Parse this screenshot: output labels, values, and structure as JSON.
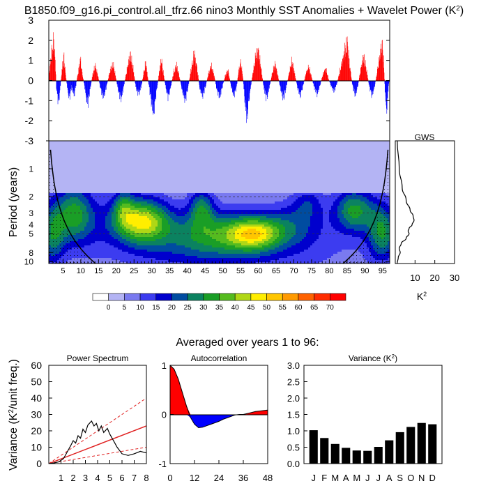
{
  "title_main": "B1850.f09_g16.pi_control.all_tfrz.66 nino3 Monthly SST Anomalies + Wavelet Power (K",
  "title_sup": "2",
  "title_close": ")",
  "colors": {
    "positive": "#ff0000",
    "negative": "#0000ff",
    "bar": "#000000",
    "red_line": "#e02020"
  },
  "chart_data": [
    {
      "type": "bar",
      "name": "timeseries",
      "ylim": [
        -3,
        3
      ],
      "yticks": [
        "3",
        "2",
        "1",
        "0",
        "-1",
        "-2",
        "-3"
      ],
      "ytick_values": [
        3,
        2,
        1,
        0,
        -1,
        -2,
        -3
      ],
      "xlim": [
        0,
        97
      ],
      "envelope": [
        [
          0.0,
          0.3
        ],
        [
          0.5,
          1.2
        ],
        [
          1.0,
          2.2
        ],
        [
          1.4,
          2.6
        ],
        [
          1.8,
          1.4
        ],
        [
          2.2,
          -0.6
        ],
        [
          2.8,
          -1.5
        ],
        [
          3.2,
          -0.6
        ],
        [
          3.8,
          0.8
        ],
        [
          4.3,
          1.6
        ],
        [
          4.8,
          0.4
        ],
        [
          5.3,
          -0.5
        ],
        [
          5.8,
          -1.2
        ],
        [
          6.5,
          -0.4
        ],
        [
          7.2,
          -1.0
        ],
        [
          7.8,
          -0.2
        ],
        [
          8.5,
          0.7
        ],
        [
          9.0,
          1.4
        ],
        [
          9.5,
          0.5
        ],
        [
          10.2,
          -0.4
        ],
        [
          11.0,
          -1.6
        ],
        [
          11.6,
          -0.8
        ],
        [
          12.4,
          0.3
        ],
        [
          13.2,
          1.0
        ],
        [
          14.0,
          0.3
        ],
        [
          14.8,
          -0.6
        ],
        [
          15.6,
          -1.1
        ],
        [
          16.4,
          -0.4
        ],
        [
          17.4,
          0.6
        ],
        [
          18.3,
          1.1
        ],
        [
          19.0,
          0.3
        ],
        [
          19.8,
          -0.7
        ],
        [
          20.6,
          -1.2
        ],
        [
          21.4,
          -0.3
        ],
        [
          22.4,
          0.9
        ],
        [
          23.2,
          1.7
        ],
        [
          24.0,
          0.8
        ],
        [
          24.8,
          -0.5
        ],
        [
          25.6,
          -0.9
        ],
        [
          26.4,
          -0.3
        ],
        [
          27.0,
          0.5
        ],
        [
          27.6,
          1.2
        ],
        [
          28.4,
          -0.2
        ],
        [
          29.2,
          -1.4
        ],
        [
          29.8,
          -2.2
        ],
        [
          30.6,
          -0.8
        ],
        [
          31.4,
          0.5
        ],
        [
          32.0,
          1.4
        ],
        [
          32.6,
          0.5
        ],
        [
          33.4,
          -0.6
        ],
        [
          34.0,
          -1.1
        ],
        [
          34.8,
          -0.3
        ],
        [
          35.6,
          0.6
        ],
        [
          36.4,
          1.0
        ],
        [
          37.2,
          0.2
        ],
        [
          38.0,
          -0.7
        ],
        [
          38.8,
          -1.3
        ],
        [
          39.6,
          -0.5
        ],
        [
          40.4,
          0.6
        ],
        [
          41.4,
          1.8
        ],
        [
          42.2,
          0.8
        ],
        [
          43.0,
          -0.6
        ],
        [
          43.8,
          -1.0
        ],
        [
          44.6,
          -0.4
        ],
        [
          45.4,
          0.4
        ],
        [
          46.2,
          1.0
        ],
        [
          47.0,
          0.4
        ],
        [
          47.8,
          -0.6
        ],
        [
          48.6,
          -1.1
        ],
        [
          49.4,
          -0.4
        ],
        [
          50.2,
          0.3
        ],
        [
          51.0,
          0.7
        ],
        [
          51.8,
          -0.3
        ],
        [
          52.6,
          -1.0
        ],
        [
          53.4,
          -0.5
        ],
        [
          54.0,
          0.6
        ],
        [
          54.6,
          1.2
        ],
        [
          55.2,
          0.3
        ],
        [
          55.8,
          -1.4
        ],
        [
          56.4,
          -2.5
        ],
        [
          57.2,
          -0.8
        ],
        [
          58.0,
          0.4
        ],
        [
          58.8,
          1.5
        ],
        [
          59.6,
          2.0
        ],
        [
          60.4,
          0.8
        ],
        [
          61.2,
          -0.5
        ],
        [
          62.0,
          -1.2
        ],
        [
          62.8,
          -0.4
        ],
        [
          63.6,
          0.5
        ],
        [
          64.4,
          1.1
        ],
        [
          65.2,
          0.3
        ],
        [
          66.0,
          -0.6
        ],
        [
          66.8,
          -1.2
        ],
        [
          67.6,
          -0.4
        ],
        [
          68.4,
          0.5
        ],
        [
          69.2,
          1.3
        ],
        [
          70.0,
          0.4
        ],
        [
          70.8,
          -0.5
        ],
        [
          71.6,
          -1.0
        ],
        [
          72.4,
          -0.3
        ],
        [
          73.2,
          0.5
        ],
        [
          74.0,
          0.9
        ],
        [
          74.8,
          0.2
        ],
        [
          75.6,
          -0.5
        ],
        [
          76.4,
          -0.9
        ],
        [
          77.2,
          -0.3
        ],
        [
          78.0,
          0.4
        ],
        [
          78.8,
          0.8
        ],
        [
          79.6,
          0.1
        ],
        [
          80.4,
          -0.4
        ],
        [
          81.2,
          -0.7
        ],
        [
          82.0,
          -0.2
        ],
        [
          82.8,
          0.6
        ],
        [
          83.6,
          1.3
        ],
        [
          84.4,
          2.2
        ],
        [
          85.0,
          2.4
        ],
        [
          85.6,
          1.0
        ],
        [
          86.4,
          -0.3
        ],
        [
          87.2,
          -1.0
        ],
        [
          88.0,
          -0.3
        ],
        [
          88.8,
          0.8
        ],
        [
          89.6,
          1.6
        ],
        [
          90.4,
          0.7
        ],
        [
          91.2,
          -0.4
        ],
        [
          92.0,
          -1.0
        ],
        [
          92.8,
          -0.3
        ],
        [
          93.6,
          0.8
        ],
        [
          94.4,
          1.9
        ],
        [
          95.0,
          2.4
        ],
        [
          95.4,
          0.6
        ],
        [
          95.8,
          -1.2
        ],
        [
          96.2,
          -2.0
        ],
        [
          96.6,
          -0.5
        ],
        [
          97.0,
          0.2
        ]
      ]
    },
    {
      "type": "heatmap",
      "name": "wavelet",
      "ylabel": "Period (years)",
      "ytick_labels": [
        "1",
        "2",
        "3",
        "4",
        "5",
        "8",
        "10"
      ],
      "ytick_values": [
        1,
        2,
        3,
        4,
        5,
        8,
        10
      ],
      "ylim_periods": [
        0.5,
        10.5
      ],
      "xtick_labels": [
        "5",
        "10",
        "15",
        "20",
        "25",
        "30",
        "35",
        "40",
        "45",
        "50",
        "55",
        "60",
        "65",
        "70",
        "75",
        "80",
        "85",
        "90",
        "95"
      ],
      "xtick_values": [
        5,
        10,
        15,
        20,
        25,
        30,
        35,
        40,
        45,
        50,
        55,
        60,
        65,
        70,
        75,
        80,
        85,
        90,
        95
      ],
      "xlim": [
        1,
        97
      ],
      "dashed_periods": [
        2,
        3,
        5
      ],
      "blobs": [
        {
          "x": 8,
          "period": 3.0,
          "sx": 3.5,
          "sp": 0.18,
          "amp": 22
        },
        {
          "x": 2,
          "period": 5.0,
          "sx": 2.5,
          "sp": 0.2,
          "amp": 22
        },
        {
          "x": 27,
          "period": 3.6,
          "sx": 5.5,
          "sp": 0.14,
          "amp": 38
        },
        {
          "x": 22,
          "period": 2.5,
          "sx": 2.0,
          "sp": 0.12,
          "amp": 14
        },
        {
          "x": 44,
          "period": 2.6,
          "sx": 2.5,
          "sp": 0.12,
          "amp": 20
        },
        {
          "x": 50,
          "period": 5.0,
          "sx": 10.0,
          "sp": 0.14,
          "amp": 20
        },
        {
          "x": 59,
          "period": 5.0,
          "sx": 5.0,
          "sp": 0.1,
          "amp": 26
        },
        {
          "x": 70,
          "period": 4.0,
          "sx": 6.0,
          "sp": 0.14,
          "amp": 12
        },
        {
          "x": 74,
          "period": 2.3,
          "sx": 3.0,
          "sp": 0.1,
          "amp": 11
        },
        {
          "x": 87,
          "period": 2.8,
          "sx": 4.0,
          "sp": 0.14,
          "amp": 26
        },
        {
          "x": 95,
          "period": 4.8,
          "sx": 3.0,
          "sp": 0.18,
          "amp": 24
        },
        {
          "x": 60,
          "period": 7.5,
          "sx": 22.0,
          "sp": 0.22,
          "amp": 8
        },
        {
          "x": 35,
          "period": 6.5,
          "sx": 12.0,
          "sp": 0.18,
          "amp": 7
        },
        {
          "x": 12,
          "period": 3.8,
          "sx": 6.0,
          "sp": 0.22,
          "amp": 8
        }
      ]
    },
    {
      "type": "line",
      "name": "gws",
      "title": "GWS",
      "xlabel": "K",
      "xlabel_sup": "2",
      "xticks": [
        "10",
        "20",
        "30"
      ],
      "xtick_values": [
        10,
        20,
        30
      ],
      "xlim": [
        0,
        30
      ],
      "points": [
        [
          1.0,
          0.5
        ],
        [
          2.0,
          1.0
        ],
        [
          3.5,
          1.6
        ],
        [
          5.5,
          2.2
        ],
        [
          7.5,
          2.8
        ],
        [
          9.0,
          3.2
        ],
        [
          9.5,
          3.6
        ],
        [
          8.5,
          4.0
        ],
        [
          7.0,
          4.4
        ],
        [
          6.5,
          4.7
        ],
        [
          7.0,
          5.0
        ],
        [
          5.5,
          5.6
        ],
        [
          3.0,
          6.4
        ],
        [
          2.0,
          7.2
        ],
        [
          2.5,
          8.0
        ],
        [
          1.5,
          9.0
        ],
        [
          1.0,
          10.5
        ]
      ]
    },
    {
      "type": "colorbar",
      "name": "colorbar",
      "labels": [
        "0",
        "5",
        "10",
        "15",
        "20",
        "25",
        "30",
        "35",
        "40",
        "45",
        "50",
        "55",
        "60",
        "65",
        "70"
      ],
      "levels": [
        0,
        5,
        10,
        15,
        20,
        25,
        30,
        35,
        40,
        45,
        50,
        55,
        60,
        65,
        70
      ],
      "colors": [
        "#ffffff",
        "#b4b4f4",
        "#7a7af0",
        "#3c3cf0",
        "#0000cd",
        "#004ca0",
        "#0b8260",
        "#1a9e26",
        "#55bb1f",
        "#b0d716",
        "#ffee00",
        "#ffc600",
        "#ff9a00",
        "#ff6200",
        "#ff2c00",
        "#ff0000"
      ]
    },
    {
      "type": "line",
      "name": "power-spectrum",
      "title": "Power Spectrum",
      "ylabel": "Variance (K",
      "ylabel_sup": "2",
      "ylabel_rest": "/unit freq.)",
      "xticks": [
        "1",
        "2",
        "3",
        "4",
        "5",
        "6",
        "7",
        "8"
      ],
      "xtick_values": [
        1,
        2,
        3,
        4,
        5,
        6,
        7,
        8
      ],
      "yticks": [
        "0",
        "10",
        "20",
        "30",
        "40",
        "50",
        "60"
      ],
      "ytick_values": [
        0,
        10,
        20,
        30,
        40,
        50,
        60
      ],
      "xlim": [
        0,
        8
      ],
      "ylim": [
        0,
        60
      ],
      "spectrum": [
        [
          0.05,
          0.1
        ],
        [
          0.4,
          0.4
        ],
        [
          0.8,
          1.0
        ],
        [
          1.2,
          3.0
        ],
        [
          1.5,
          7.0
        ],
        [
          1.8,
          11.0
        ],
        [
          2.0,
          14.0
        ],
        [
          2.2,
          12.5
        ],
        [
          2.4,
          17.0
        ],
        [
          2.6,
          15.5
        ],
        [
          2.8,
          21.0
        ],
        [
          3.0,
          19.0
        ],
        [
          3.2,
          23.5
        ],
        [
          3.5,
          26.0
        ],
        [
          3.7,
          23.0
        ],
        [
          3.9,
          24.5
        ],
        [
          4.1,
          20.0
        ],
        [
          4.3,
          23.0
        ],
        [
          4.5,
          19.0
        ],
        [
          4.8,
          21.5
        ],
        [
          5.0,
          18.0
        ],
        [
          5.3,
          14.0
        ],
        [
          5.6,
          10.0
        ],
        [
          6.0,
          6.0
        ],
        [
          6.5,
          5.0
        ],
        [
          7.0,
          6.0
        ],
        [
          7.5,
          7.5
        ],
        [
          8.0,
          6.5
        ]
      ],
      "red_noise": [
        [
          0,
          0
        ],
        [
          8,
          23
        ]
      ],
      "red_upper": [
        [
          0,
          0
        ],
        [
          8,
          40
        ]
      ],
      "red_lower": [
        [
          0,
          0
        ],
        [
          8,
          10
        ]
      ]
    },
    {
      "type": "area",
      "name": "autocorrelation",
      "title": "Autocorrelation",
      "xticks": [
        "0",
        "12",
        "24",
        "36",
        "48"
      ],
      "xtick_values": [
        0,
        12,
        24,
        36,
        48
      ],
      "yticks": [
        "1",
        "0",
        "-1"
      ],
      "ytick_values": [
        1,
        0,
        -1
      ],
      "xlim": [
        0,
        48
      ],
      "ylim": [
        -1,
        1
      ],
      "points": [
        [
          0,
          1.0
        ],
        [
          2,
          0.92
        ],
        [
          4,
          0.72
        ],
        [
          6,
          0.45
        ],
        [
          8,
          0.18
        ],
        [
          10,
          -0.06
        ],
        [
          12,
          -0.2
        ],
        [
          14,
          -0.27
        ],
        [
          16,
          -0.26
        ],
        [
          18,
          -0.23
        ],
        [
          20,
          -0.2
        ],
        [
          22,
          -0.17
        ],
        [
          24,
          -0.14
        ],
        [
          26,
          -0.1
        ],
        [
          28,
          -0.07
        ],
        [
          30,
          -0.04
        ],
        [
          32,
          -0.01
        ],
        [
          34,
          0.0
        ],
        [
          36,
          0.0
        ],
        [
          38,
          0.02
        ],
        [
          40,
          0.04
        ],
        [
          42,
          0.06
        ],
        [
          44,
          0.07
        ],
        [
          46,
          0.08
        ],
        [
          48,
          0.09
        ]
      ]
    },
    {
      "type": "bar",
      "name": "variance",
      "title": "Variance (K",
      "title_sup": "2",
      "title_close": ")",
      "categories": [
        "J",
        "F",
        "M",
        "A",
        "M",
        "J",
        "J",
        "A",
        "S",
        "O",
        "N",
        "D"
      ],
      "values": [
        1.02,
        0.78,
        0.6,
        0.48,
        0.4,
        0.39,
        0.51,
        0.71,
        0.96,
        1.12,
        1.24,
        1.2
      ],
      "yticks": [
        "0.0",
        "0.5",
        "1.0",
        "1.5",
        "2.0",
        "2.5",
        "3.0"
      ],
      "ytick_values": [
        0,
        0.5,
        1,
        1.5,
        2,
        2.5,
        3
      ],
      "ylim": [
        0,
        3
      ]
    }
  ],
  "averaged_label": "Averaged over years 1 to 96:"
}
